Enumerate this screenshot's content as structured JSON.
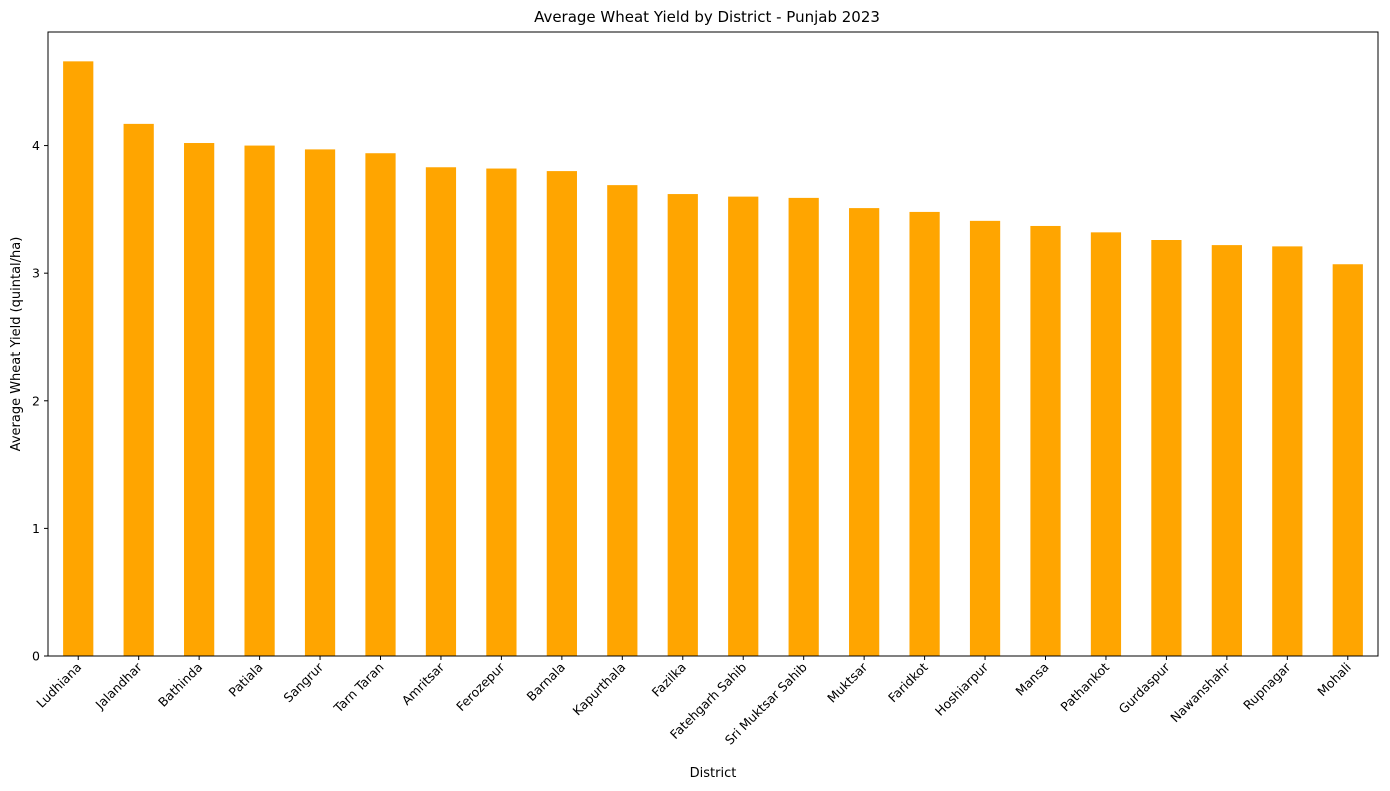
{
  "chart_data": {
    "type": "bar",
    "title": "Average Wheat Yield by District - Punjab 2023",
    "xlabel": "District",
    "ylabel": "Average Wheat Yield (quintal/ha)",
    "categories": [
      "Ludhiana",
      "Jalandhar",
      "Bathinda",
      "Patiala",
      "Sangrur",
      "Tarn Taran",
      "Amritsar",
      "Ferozepur",
      "Barnala",
      "Kapurthala",
      "Fazilka",
      "Fatehgarh Sahib",
      "Sri Muktsar Sahib",
      "Muktsar",
      "Faridkot",
      "Hoshiarpur",
      "Mansa",
      "Pathankot",
      "Gurdaspur",
      "Nawanshahr",
      "Rupnagar",
      "Mohali"
    ],
    "values": [
      4.66,
      4.17,
      4.02,
      4.0,
      3.97,
      3.94,
      3.83,
      3.82,
      3.8,
      3.69,
      3.62,
      3.6,
      3.59,
      3.51,
      3.48,
      3.41,
      3.37,
      3.32,
      3.26,
      3.22,
      3.21,
      3.07
    ],
    "yticks": [
      0,
      1,
      2,
      3,
      4
    ],
    "ylim": [
      0,
      4.89
    ],
    "bar_color": "#ffa500",
    "grid": false,
    "legend": "none"
  }
}
